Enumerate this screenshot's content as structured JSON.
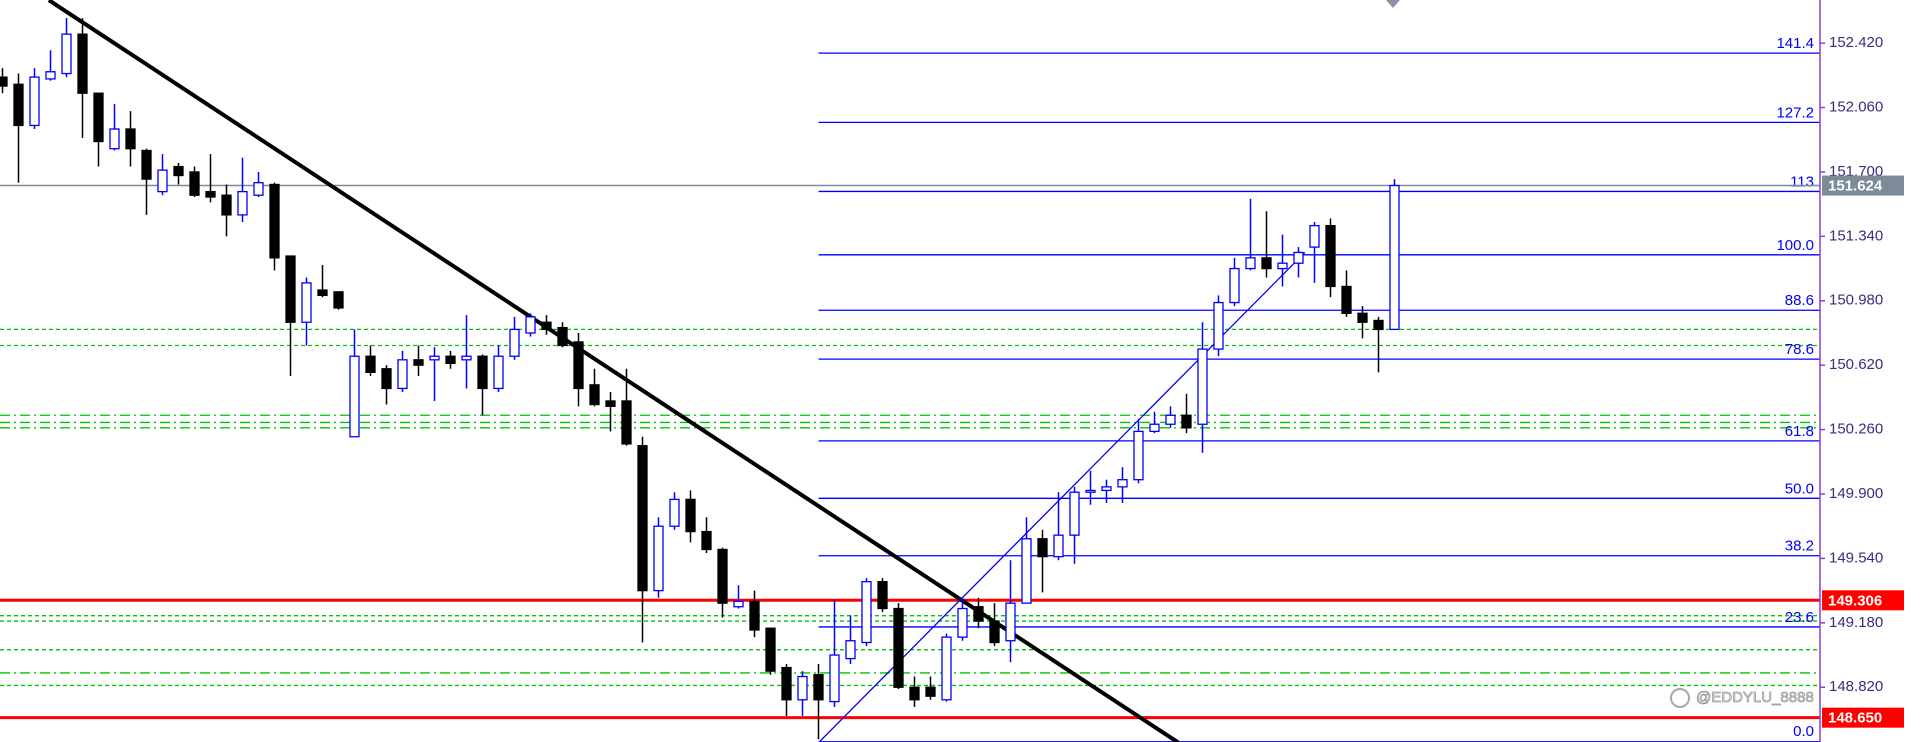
{
  "chart_data": {
    "type": "candlestick",
    "ylim": [
      148.514,
      152.661
    ],
    "yticks": [
      {
        "value": 148.82,
        "label": "148.820"
      },
      {
        "value": 149.18,
        "label": "149.180"
      },
      {
        "value": 149.54,
        "label": "149.540"
      },
      {
        "value": 149.9,
        "label": "149.900"
      },
      {
        "value": 150.26,
        "label": "150.260"
      },
      {
        "value": 150.62,
        "label": "150.620"
      },
      {
        "value": 150.98,
        "label": "150.980"
      },
      {
        "value": 151.34,
        "label": "151.340"
      },
      {
        "value": 151.7,
        "label": "151.700"
      },
      {
        "value": 152.06,
        "label": "152.060"
      },
      {
        "value": 152.42,
        "label": "152.420"
      }
    ],
    "open": [
      152.23,
      152.19,
      151.96,
      152.22,
      152.25,
      152.47,
      152.14,
      151.83,
      151.94,
      151.82,
      151.59,
      151.73,
      151.7,
      151.59,
      151.57,
      151.46,
      151.57,
      151.63,
      151.23,
      150.86,
      151.04,
      151.03,
      150.22,
      150.67,
      150.6,
      150.49,
      150.65,
      150.65,
      150.67,
      150.65,
      150.67,
      150.49,
      150.67,
      150.8,
      150.86,
      150.83,
      150.75,
      150.51,
      150.42,
      150.42,
      150.17,
      149.36,
      149.72,
      149.87,
      149.69,
      149.59,
      149.27,
      149.3,
      149.15,
      148.93,
      148.75,
      148.89,
      148.74,
      148.98,
      149.07,
      149.41,
      149.26,
      148.82,
      148.82,
      148.75,
      149.1,
      149.27,
      149.19,
      149.08,
      149.29,
      149.65,
      149.55,
      149.67,
      149.91,
      149.92,
      149.94,
      149.98,
      150.25,
      150.29,
      150.34,
      150.29,
      150.71,
      150.97,
      151.16,
      151.22,
      151.16,
      151.19,
      151.28,
      151.4,
      151.06,
      150.91,
      150.87,
      150.82
    ],
    "high": [
      152.28,
      152.25,
      152.28,
      152.38,
      152.56,
      152.56,
      152.14,
      152.08,
      152.04,
      151.83,
      151.8,
      151.75,
      151.73,
      151.8,
      151.63,
      151.78,
      151.7,
      151.64,
      151.23,
      151.11,
      151.18,
      151.03,
      150.82,
      150.73,
      150.62,
      150.7,
      150.73,
      150.72,
      150.7,
      150.9,
      150.68,
      150.73,
      150.89,
      150.91,
      150.9,
      150.86,
      150.8,
      150.6,
      150.47,
      150.6,
      150.22,
      149.77,
      149.91,
      149.92,
      149.77,
      149.6,
      149.39,
      149.36,
      149.15,
      148.95,
      148.91,
      148.95,
      149.31,
      149.22,
      149.43,
      149.43,
      149.29,
      148.88,
      148.88,
      149.12,
      149.32,
      149.32,
      149.29,
      149.53,
      149.77,
      149.7,
      149.91,
      149.94,
      150.03,
      149.98,
      150.05,
      150.32,
      150.36,
      150.39,
      150.46,
      150.86,
      151.01,
      151.22,
      151.55,
      151.48,
      151.35,
      151.28,
      151.42,
      151.44,
      151.15,
      150.95,
      150.89,
      151.66
    ],
    "low": [
      152.14,
      151.64,
      151.94,
      152.21,
      152.23,
      151.89,
      151.73,
      151.82,
      151.73,
      151.46,
      151.57,
      151.63,
      151.56,
      151.53,
      151.34,
      151.42,
      151.56,
      151.15,
      150.56,
      150.73,
      151.0,
      150.93,
      150.22,
      150.56,
      150.4,
      150.47,
      150.56,
      150.42,
      150.6,
      150.49,
      150.34,
      150.47,
      150.65,
      150.78,
      150.79,
      150.72,
      150.39,
      150.39,
      150.25,
      150.17,
      149.07,
      149.32,
      149.7,
      149.63,
      149.57,
      149.21,
      149.26,
      149.1,
      148.89,
      148.66,
      148.66,
      148.53,
      148.71,
      148.95,
      149.05,
      149.24,
      148.81,
      148.71,
      148.75,
      148.74,
      149.08,
      149.15,
      149.05,
      148.96,
      149.29,
      149.35,
      149.53,
      149.51,
      149.84,
      149.85,
      149.85,
      149.96,
      150.24,
      150.27,
      150.24,
      150.13,
      150.67,
      150.95,
      151.15,
      151.11,
      151.06,
      151.11,
      151.08,
      151.0,
      150.89,
      150.77,
      150.58,
      150.82
    ],
    "close": [
      152.18,
      151.96,
      152.23,
      152.26,
      152.47,
      152.14,
      151.87,
      151.94,
      151.83,
      151.66,
      151.71,
      151.68,
      151.57,
      151.56,
      151.46,
      151.59,
      151.64,
      151.22,
      150.86,
      151.08,
      151.01,
      150.94,
      150.67,
      150.58,
      150.49,
      150.65,
      150.62,
      150.67,
      150.63,
      150.67,
      150.49,
      150.67,
      150.82,
      150.89,
      150.82,
      150.73,
      150.49,
      150.4,
      150.39,
      150.18,
      149.36,
      149.72,
      149.87,
      149.69,
      149.59,
      149.29,
      149.3,
      149.14,
      148.91,
      148.75,
      148.88,
      148.75,
      149.0,
      149.08,
      149.41,
      149.26,
      148.82,
      148.75,
      148.77,
      149.1,
      149.26,
      149.19,
      149.07,
      149.29,
      149.65,
      149.55,
      149.67,
      149.91,
      149.92,
      149.94,
      149.98,
      150.25,
      150.29,
      150.34,
      150.27,
      150.71,
      150.97,
      151.16,
      151.22,
      151.16,
      151.19,
      151.25,
      151.4,
      151.06,
      150.91,
      150.86,
      150.82,
      151.624
    ],
    "up_color": "#0000ff",
    "up_fill": "#ffffff",
    "down_color": "#000000",
    "axis_color": "#8b3fd1",
    "tick_label_color": "#3c2b80",
    "support_lines": {
      "color": "#00c400",
      "levels": [
        {
          "value": 150.82,
          "style": "dashed"
        },
        {
          "value": 150.73,
          "style": "dashed"
        },
        {
          "value": 150.34,
          "style": "dash-dot"
        },
        {
          "value": 150.3,
          "style": "dash-dot"
        },
        {
          "value": 150.27,
          "style": "dash-dot"
        },
        {
          "value": 149.22,
          "style": "dashed"
        },
        {
          "value": 149.19,
          "style": "dashed"
        },
        {
          "value": 149.03,
          "style": "dashed"
        },
        {
          "value": 148.9,
          "style": "dash-dot"
        },
        {
          "value": 148.83,
          "style": "dashed"
        }
      ]
    },
    "fibonacci": {
      "color": "#0000ff",
      "x_start": 51,
      "levels": [
        {
          "label": "141.4",
          "price": 152.364
        },
        {
          "label": "127.2",
          "price": 151.977
        },
        {
          "label": "113",
          "price": 151.591
        },
        {
          "label": "100.0",
          "price": 151.237
        },
        {
          "label": "88.6",
          "price": 150.927
        },
        {
          "label": "78.6",
          "price": 150.654
        },
        {
          "label": "61.8",
          "price": 150.197
        },
        {
          "label": "50.0",
          "price": 149.876
        },
        {
          "label": "38.2",
          "price": 149.555
        },
        {
          "label": "23.6",
          "price": 149.157
        },
        {
          "label": "0.0",
          "price": 148.515
        }
      ]
    },
    "price_lines": [
      {
        "value": 151.624,
        "label": "151.624",
        "color": "#7d8a99",
        "style": "thin"
      },
      {
        "value": 149.306,
        "label": "149.306",
        "color": "#ff0000",
        "style": "thick"
      },
      {
        "value": 148.65,
        "label": "148.650",
        "color": "#ff0000",
        "style": "thick"
      }
    ],
    "trendlines": [
      {
        "color": "#000000",
        "style": "thick",
        "x": [
          2.9,
          73.5
        ],
        "y": [
          152.66,
          148.51
        ]
      },
      {
        "color": "#0000ff",
        "style": "thin",
        "x": [
          51.0,
          81.4
        ],
        "y": [
          148.51,
          151.25
        ]
      }
    ],
    "watermark": "@EDDYLU_8888"
  }
}
